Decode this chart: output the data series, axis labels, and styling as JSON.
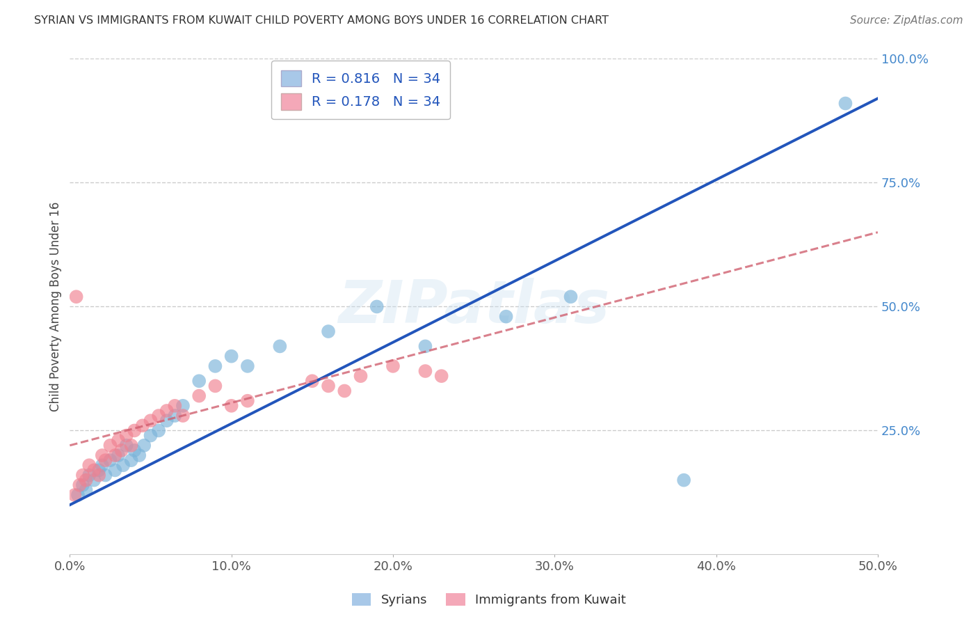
{
  "title": "SYRIAN VS IMMIGRANTS FROM KUWAIT CHILD POVERTY AMONG BOYS UNDER 16 CORRELATION CHART",
  "source": "Source: ZipAtlas.com",
  "ylabel": "Child Poverty Among Boys Under 16",
  "xlim": [
    0.0,
    0.5
  ],
  "ylim": [
    0.0,
    1.0
  ],
  "xticks": [
    0.0,
    0.1,
    0.2,
    0.3,
    0.4,
    0.5
  ],
  "xtick_labels": [
    "0.0%",
    "10.0%",
    "20.0%",
    "30.0%",
    "40.0%",
    "50.0%"
  ],
  "yticks": [
    0.25,
    0.5,
    0.75,
    1.0
  ],
  "ytick_labels": [
    "25.0%",
    "50.0%",
    "75.0%",
    "100.0%"
  ],
  "legend_labels": [
    "Syrians",
    "Immigrants from Kuwait"
  ],
  "legend_colors": [
    "#a8c8e8",
    "#f4a8b8"
  ],
  "R_syrian": 0.816,
  "N_syrian": 34,
  "R_kuwait": 0.178,
  "N_kuwait": 34,
  "watermark": "ZIPatlas",
  "syrian_color": "#7ab3d9",
  "kuwait_color": "#f08090",
  "syrian_line_color": "#2255bb",
  "kuwait_line_color": "#d06070",
  "background_color": "#ffffff",
  "grid_color": "#cccccc",
  "syrian_x": [
    0.005,
    0.008,
    0.01,
    0.012,
    0.015,
    0.018,
    0.02,
    0.022,
    0.025,
    0.028,
    0.03,
    0.033,
    0.035,
    0.038,
    0.04,
    0.043,
    0.046,
    0.05,
    0.055,
    0.06,
    0.065,
    0.07,
    0.08,
    0.09,
    0.1,
    0.11,
    0.13,
    0.16,
    0.19,
    0.22,
    0.27,
    0.31,
    0.38,
    0.48
  ],
  "syrian_y": [
    0.12,
    0.14,
    0.13,
    0.16,
    0.15,
    0.17,
    0.18,
    0.16,
    0.19,
    0.17,
    0.2,
    0.18,
    0.22,
    0.19,
    0.21,
    0.2,
    0.22,
    0.24,
    0.25,
    0.27,
    0.28,
    0.3,
    0.35,
    0.38,
    0.4,
    0.38,
    0.42,
    0.45,
    0.5,
    0.42,
    0.48,
    0.52,
    0.15,
    0.91
  ],
  "kuwait_x": [
    0.003,
    0.006,
    0.008,
    0.01,
    0.012,
    0.015,
    0.018,
    0.02,
    0.022,
    0.025,
    0.028,
    0.03,
    0.032,
    0.035,
    0.038,
    0.04,
    0.045,
    0.05,
    0.055,
    0.06,
    0.065,
    0.07,
    0.08,
    0.09,
    0.1,
    0.11,
    0.15,
    0.16,
    0.17,
    0.18,
    0.2,
    0.22,
    0.23,
    0.004
  ],
  "kuwait_y": [
    0.12,
    0.14,
    0.16,
    0.15,
    0.18,
    0.17,
    0.16,
    0.2,
    0.19,
    0.22,
    0.2,
    0.23,
    0.21,
    0.24,
    0.22,
    0.25,
    0.26,
    0.27,
    0.28,
    0.29,
    0.3,
    0.28,
    0.32,
    0.34,
    0.3,
    0.31,
    0.35,
    0.34,
    0.33,
    0.36,
    0.38,
    0.37,
    0.36,
    0.52
  ]
}
